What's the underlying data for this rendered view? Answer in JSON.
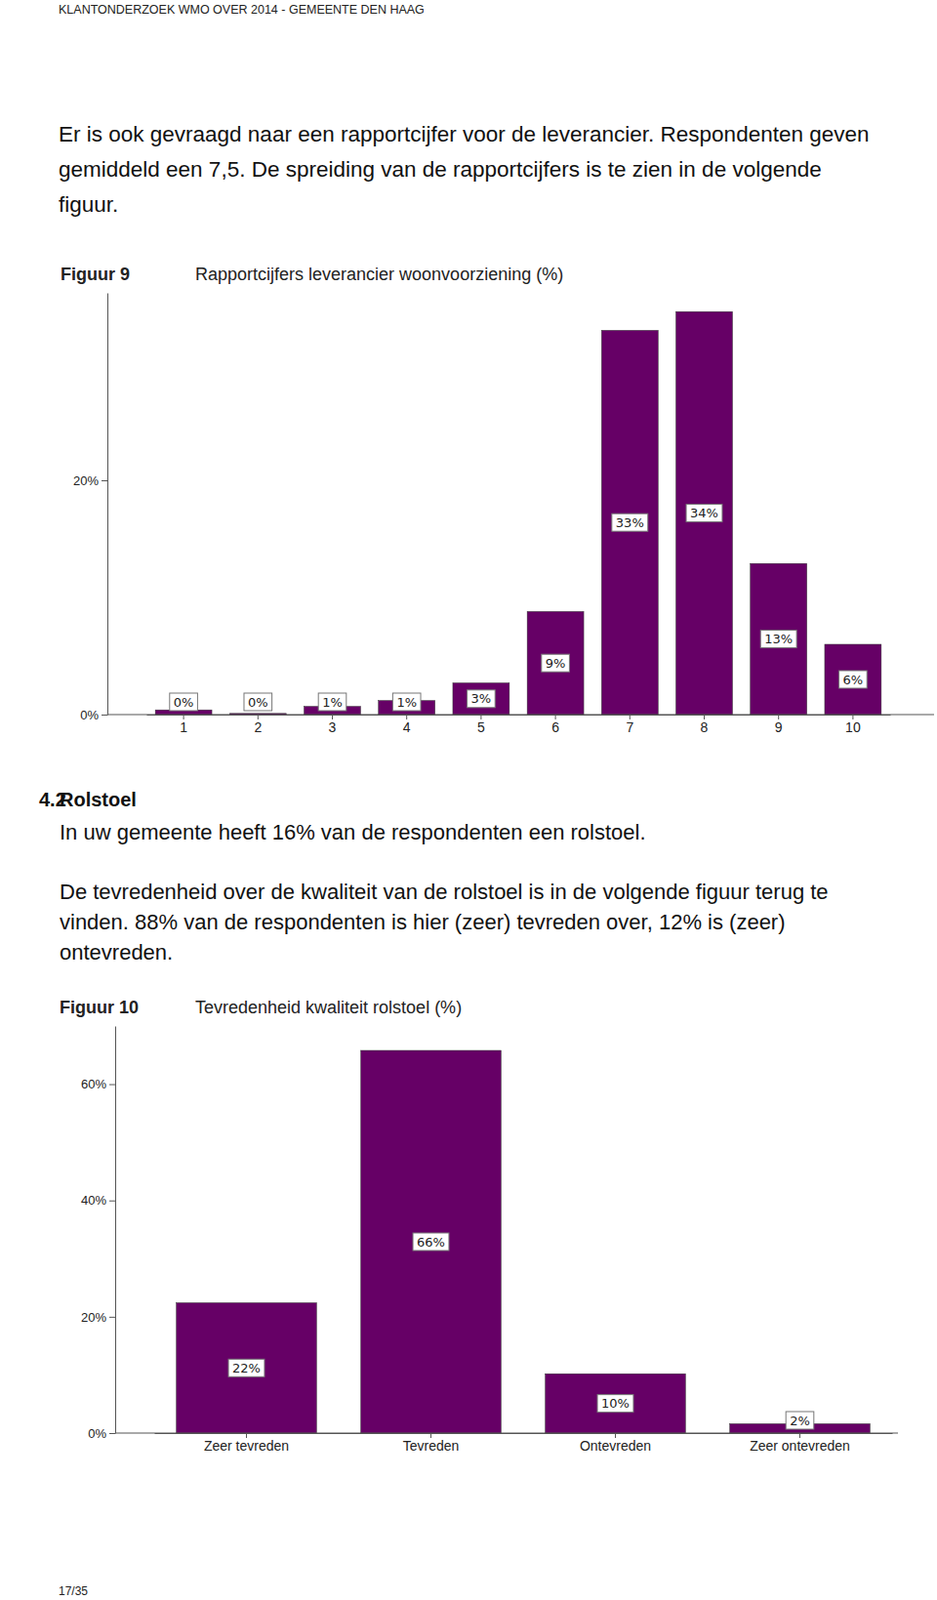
{
  "header": "KLANTONDERZOEK WMO OVER 2014 - GEMEENTE DEN HAAG",
  "intro": [
    "Er is ook gevraagd naar een rapportcijfer voor de leverancier. Respondenten geven",
    "gemiddeld een 7,5. De spreiding van de rapportcijfers is te zien in de volgende",
    "figuur."
  ],
  "section": {
    "number": "4.2",
    "title": "Rolstoel",
    "paragraphs": [
      [
        "In uw gemeente heeft 16% van de respondenten een rolstoel."
      ],
      [
        "De tevredenheid over de kwaliteit van de rolstoel is in de volgende figuur terug te",
        "vinden. 88% van de respondenten is hier (zeer) tevreden over, 12% is (zeer)",
        "ontevreden."
      ]
    ]
  },
  "chart_data": [
    {
      "figure": "Figuur 9",
      "type": "bar",
      "title": "Rapportcijfers leverancier woonvoorziening (%)",
      "categories": [
        "1",
        "2",
        "3",
        "4",
        "5",
        "6",
        "7",
        "8",
        "9",
        "10"
      ],
      "values": [
        0.4,
        0.1,
        0.7,
        1.2,
        2.7,
        8.8,
        32.8,
        34.4,
        12.9,
        6.0
      ],
      "value_labels": [
        "0%",
        "0%",
        "1%",
        "1%",
        "3%",
        "9%",
        "33%",
        "34%",
        "13%",
        "6%"
      ],
      "color": "#660066",
      "ylim": [
        0,
        36
      ],
      "yticks": [
        {
          "value": 0,
          "label": "0%"
        },
        {
          "value": 20,
          "label": "20%"
        }
      ],
      "grid": false,
      "data_labels": true
    },
    {
      "figure": "Figuur 10",
      "type": "bar",
      "title": "Tevredenheid kwaliteit rolstoel (%)",
      "categories": [
        "Zeer tevreden",
        "Tevreden",
        "Ontevreden",
        "Zeer ontevreden"
      ],
      "values": [
        22.4,
        65.8,
        10.2,
        1.6
      ],
      "value_labels": [
        "22%",
        "66%",
        "10%",
        "2%"
      ],
      "color": "#660066",
      "ylim": [
        0,
        70
      ],
      "yticks": [
        {
          "value": 0,
          "label": "0%"
        },
        {
          "value": 20,
          "label": "20%"
        },
        {
          "value": 40,
          "label": "40%"
        },
        {
          "value": 60,
          "label": "60%"
        }
      ],
      "grid": false,
      "data_labels": true
    }
  ],
  "page_number": "17/35"
}
